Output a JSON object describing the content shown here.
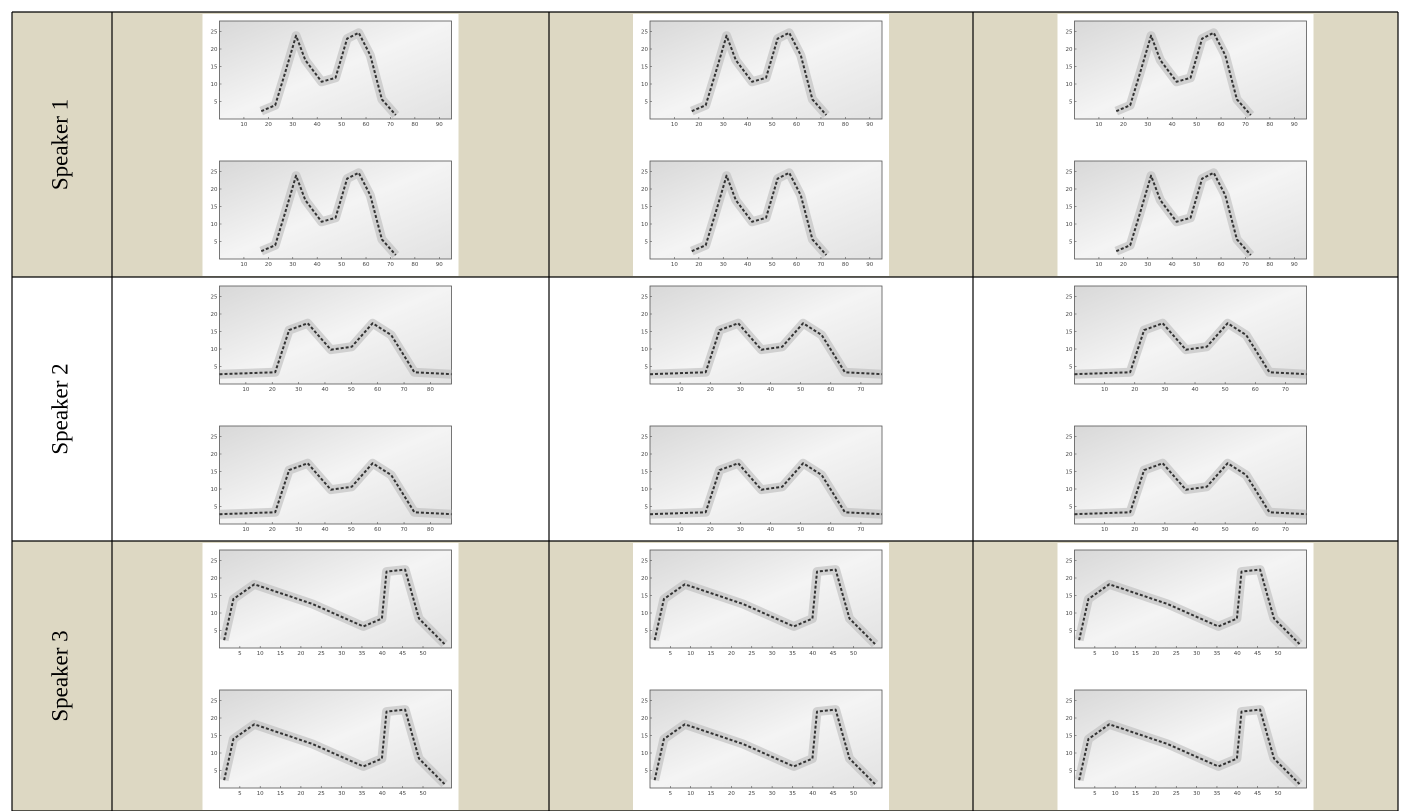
{
  "table": {
    "rows": [
      {
        "label": "Speaker 1",
        "cells": [
          {
            "plots": [
              {
                "xlim": [
                  0,
                  95
                ],
                "xticks": [
                  10,
                  20,
                  30,
                  40,
                  50,
                  60,
                  70,
                  80,
                  90
                ],
                "ylim": [
                  0,
                  28
                ],
                "yticks": [
                  5,
                  10,
                  15,
                  20,
                  25
                ]
              },
              {
                "xlim": [
                  0,
                  95
                ],
                "xticks": [
                  10,
                  20,
                  30,
                  40,
                  50,
                  60,
                  70,
                  80,
                  90
                ],
                "ylim": [
                  0,
                  28
                ],
                "yticks": [
                  5,
                  10,
                  15,
                  20,
                  25
                ]
              }
            ]
          },
          {
            "plots": [
              {
                "xlim": [
                  0,
                  95
                ],
                "xticks": [
                  10,
                  20,
                  30,
                  40,
                  50,
                  60,
                  70,
                  80,
                  90
                ],
                "ylim": [
                  0,
                  28
                ],
                "yticks": [
                  5,
                  10,
                  15,
                  20,
                  25
                ]
              },
              {
                "xlim": [
                  0,
                  95
                ],
                "xticks": [
                  10,
                  20,
                  30,
                  40,
                  50,
                  60,
                  70,
                  80,
                  90
                ],
                "ylim": [
                  0,
                  28
                ],
                "yticks": [
                  5,
                  10,
                  15,
                  20,
                  25
                ]
              }
            ]
          },
          {
            "plots": [
              {
                "xlim": [
                  0,
                  95
                ],
                "xticks": [
                  10,
                  20,
                  30,
                  40,
                  50,
                  60,
                  70,
                  80,
                  90
                ],
                "ylim": [
                  0,
                  28
                ],
                "yticks": [
                  5,
                  10,
                  15,
                  20,
                  25
                ]
              },
              {
                "xlim": [
                  0,
                  95
                ],
                "xticks": [
                  10,
                  20,
                  30,
                  40,
                  50,
                  60,
                  70,
                  80,
                  90
                ],
                "ylim": [
                  0,
                  28
                ],
                "yticks": [
                  5,
                  10,
                  15,
                  20,
                  25
                ]
              }
            ]
          }
        ]
      },
      {
        "label": "Speaker 2",
        "cells": [
          {
            "plots": [
              {
                "xlim": [
                  0,
                  88
                ],
                "xticks": [
                  10,
                  20,
                  30,
                  40,
                  50,
                  60,
                  70,
                  80
                ],
                "ylim": [
                  0,
                  28
                ],
                "yticks": [
                  5,
                  10,
                  15,
                  20,
                  25
                ]
              },
              {
                "xlim": [
                  0,
                  88
                ],
                "xticks": [
                  10,
                  20,
                  30,
                  40,
                  50,
                  60,
                  70,
                  80
                ],
                "ylim": [
                  0,
                  28
                ],
                "yticks": [
                  5,
                  10,
                  15,
                  20,
                  25
                ]
              }
            ]
          },
          {
            "plots": [
              {
                "xlim": [
                  0,
                  77
                ],
                "xticks": [
                  10,
                  20,
                  30,
                  40,
                  50,
                  60,
                  70
                ],
                "ylim": [
                  0,
                  28
                ],
                "yticks": [
                  5,
                  10,
                  15,
                  20,
                  25
                ]
              },
              {
                "xlim": [
                  0,
                  77
                ],
                "xticks": [
                  10,
                  20,
                  30,
                  40,
                  50,
                  60,
                  70
                ],
                "ylim": [
                  0,
                  28
                ],
                "yticks": [
                  5,
                  10,
                  15,
                  20,
                  25
                ]
              }
            ]
          },
          {
            "plots": [
              {
                "xlim": [
                  0,
                  77
                ],
                "xticks": [
                  10,
                  20,
                  30,
                  40,
                  50,
                  60,
                  70
                ],
                "ylim": [
                  0,
                  28
                ],
                "yticks": [
                  5,
                  10,
                  15,
                  20,
                  25
                ]
              },
              {
                "xlim": [
                  0,
                  77
                ],
                "xticks": [
                  10,
                  20,
                  30,
                  40,
                  50,
                  60,
                  70
                ],
                "ylim": [
                  0,
                  28
                ],
                "yticks": [
                  5,
                  10,
                  15,
                  20,
                  25
                ]
              }
            ]
          }
        ]
      },
      {
        "label": "Speaker 3",
        "cells": [
          {
            "plots": [
              {
                "xlim": [
                  0,
                  57
                ],
                "xticks": [
                  5,
                  10,
                  15,
                  20,
                  25,
                  30,
                  35,
                  40,
                  45,
                  50
                ],
                "ylim": [
                  0,
                  28
                ],
                "yticks": [
                  5,
                  10,
                  15,
                  20,
                  25
                ]
              },
              {
                "xlim": [
                  0,
                  57
                ],
                "xticks": [
                  5,
                  10,
                  15,
                  20,
                  25,
                  30,
                  35,
                  40,
                  45,
                  50
                ],
                "ylim": [
                  0,
                  28
                ],
                "yticks": [
                  5,
                  10,
                  15,
                  20,
                  25
                ]
              }
            ]
          },
          {
            "plots": [
              {
                "xlim": [
                  0,
                  57
                ],
                "xticks": [
                  5,
                  10,
                  15,
                  20,
                  25,
                  30,
                  35,
                  40,
                  45,
                  50
                ],
                "ylim": [
                  0,
                  28
                ],
                "yticks": [
                  5,
                  10,
                  15,
                  20,
                  25
                ]
              },
              {
                "xlim": [
                  0,
                  57
                ],
                "xticks": [
                  5,
                  10,
                  15,
                  20,
                  25,
                  30,
                  35,
                  40,
                  45,
                  50
                ],
                "ylim": [
                  0,
                  28
                ],
                "yticks": [
                  5,
                  10,
                  15,
                  20,
                  25
                ]
              }
            ]
          },
          {
            "plots": [
              {
                "xlim": [
                  0,
                  57
                ],
                "xticks": [
                  5,
                  10,
                  15,
                  20,
                  25,
                  30,
                  35,
                  40,
                  45,
                  50
                ],
                "ylim": [
                  0,
                  28
                ],
                "yticks": [
                  5,
                  10,
                  15,
                  20,
                  25
                ]
              },
              {
                "xlim": [
                  0,
                  57
                ],
                "xticks": [
                  5,
                  10,
                  15,
                  20,
                  25,
                  30,
                  35,
                  40,
                  45,
                  50
                ],
                "ylim": [
                  0,
                  28
                ],
                "yticks": [
                  5,
                  10,
                  15,
                  20,
                  25
                ]
              }
            ]
          }
        ]
      }
    ]
  }
}
